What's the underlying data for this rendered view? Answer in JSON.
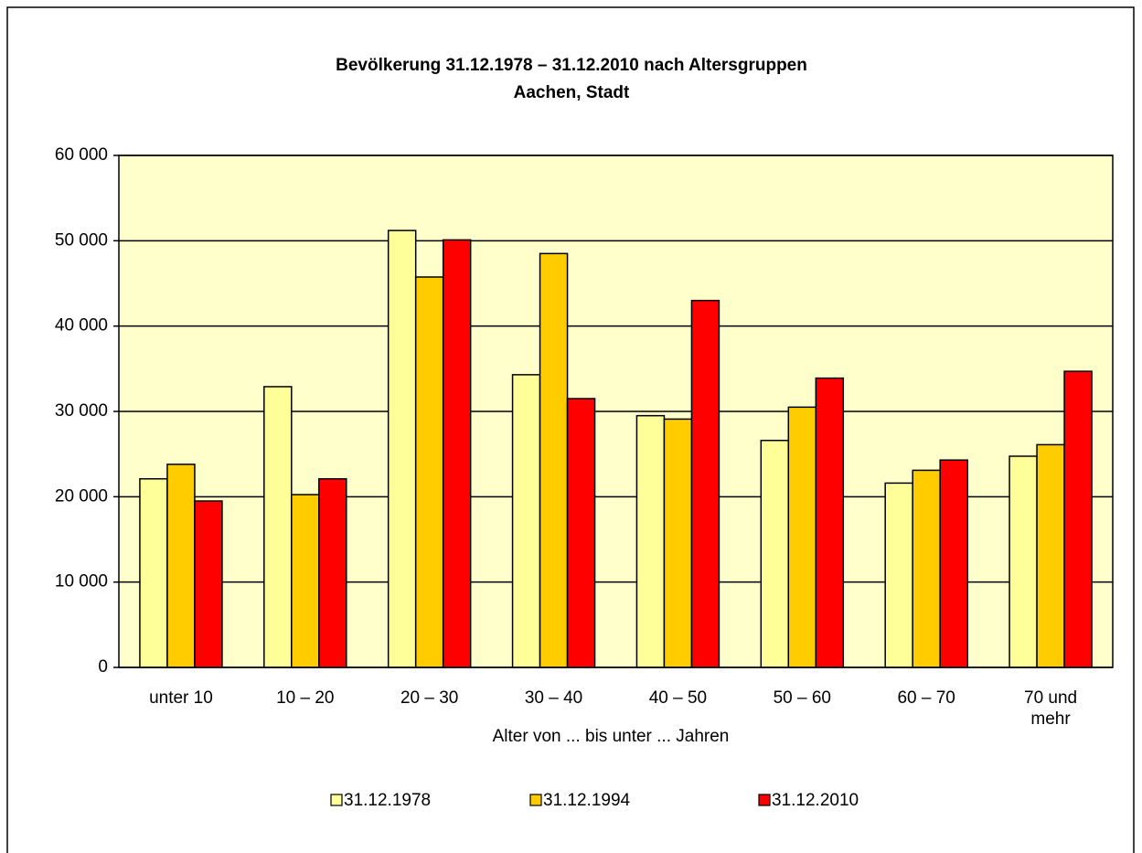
{
  "chart_data": {
    "type": "bar",
    "title": "Bevölkerung 31.12.1978 – 31.12.2010 nach Altersgruppen",
    "subtitle": "Aachen, Stadt",
    "x_label": "Alter von ... bis unter ... Jahren",
    "categories": [
      "unter 10",
      "10 – 20",
      "20 – 30",
      "30 – 40",
      "40 – 50",
      "50 – 60",
      "60 – 70",
      "70 und mehr"
    ],
    "series": [
      {
        "name": "31.12.1978",
        "color": "#ffff99",
        "values": [
          22100,
          32900,
          51200,
          34300,
          29500,
          26600,
          21600,
          24750
        ]
      },
      {
        "name": "31.12.1994",
        "color": "#ffcc00",
        "values": [
          23800,
          20250,
          45750,
          48500,
          29100,
          30500,
          23100,
          26100
        ]
      },
      {
        "name": "31.12.2010",
        "color": "#ff0000",
        "values": [
          19500,
          22100,
          50100,
          31500,
          43000,
          33900,
          24300,
          34700
        ]
      }
    ],
    "ylim": [
      0,
      60000
    ],
    "yticks": [
      {
        "value": 0,
        "label": "0"
      },
      {
        "value": 10000,
        "label": "10 000"
      },
      {
        "value": 20000,
        "label": "20 000"
      },
      {
        "value": 30000,
        "label": "30 000"
      },
      {
        "value": 40000,
        "label": "40 000"
      },
      {
        "value": 50000,
        "label": "50 000"
      },
      {
        "value": 60000,
        "label": "60 000"
      }
    ],
    "grid": true,
    "legend": "bottom",
    "plot_background": "#ffffcc"
  }
}
